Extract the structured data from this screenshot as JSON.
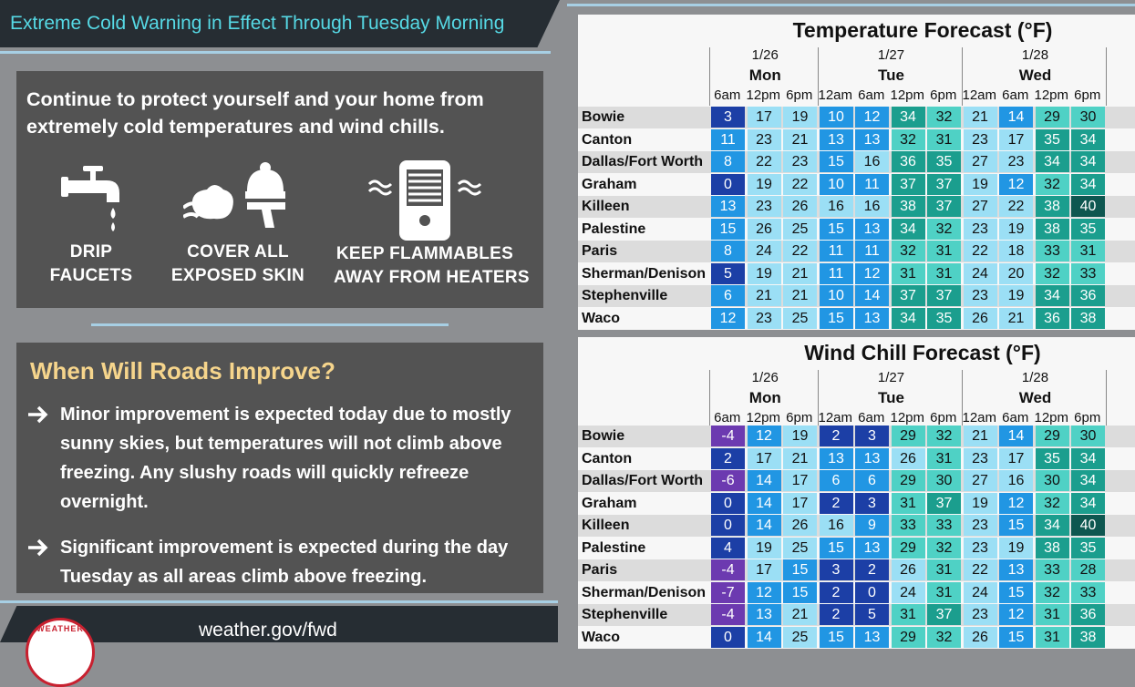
{
  "banner": {
    "title": "Extreme Cold Warning in Effect Through Tuesday Morning"
  },
  "tips": {
    "intro": "Continue to protect yourself and your home from extremely cold temperatures and wind chills.",
    "items": [
      {
        "icon": "faucet-icon",
        "line1": "DRIP",
        "line2": "FAUCETS"
      },
      {
        "icon": "cold-skin-icon",
        "line1": "COVER ALL",
        "line2": "EXPOSED SKIN"
      },
      {
        "icon": "space-heater-icon",
        "line1": "KEEP FLAMMABLES",
        "line2": "AWAY FROM HEATERS"
      }
    ]
  },
  "roads": {
    "title": "When Will Roads Improve?",
    "bullets": [
      "Minor improvement is expected today due to mostly sunny skies, but temperatures will not climb above freezing. Any slushy roads will quickly refreeze overnight.",
      "Significant improvement is expected during the day Tuesday as all areas climb above freezing."
    ]
  },
  "footer": {
    "url": "weather.gov/fwd",
    "logo_text": "WEATHER"
  },
  "forecasts": {
    "dates": [
      {
        "date": "1/26",
        "day": "Mon",
        "hours": [
          "6am",
          "12pm",
          "6pm"
        ]
      },
      {
        "date": "1/27",
        "day": "Tue",
        "hours": [
          "12am",
          "6am",
          "12pm",
          "6pm"
        ]
      },
      {
        "date": "1/28",
        "day": "Wed",
        "hours": [
          "12am",
          "6am",
          "12pm",
          "6pm"
        ]
      }
    ],
    "cities": [
      "Bowie",
      "Canton",
      "Dallas/Fort Worth",
      "Graham",
      "Killeen",
      "Palestine",
      "Paris",
      "Sherman/Denison",
      "Stephenville",
      "Waco"
    ],
    "temperature": {
      "title": "Temperature Forecast (°F)",
      "values": [
        [
          3,
          17,
          19,
          10,
          12,
          34,
          32,
          21,
          14,
          29,
          30
        ],
        [
          11,
          23,
          21,
          13,
          13,
          32,
          31,
          23,
          17,
          35,
          34
        ],
        [
          8,
          22,
          23,
          15,
          16,
          36,
          35,
          27,
          23,
          34,
          34
        ],
        [
          0,
          19,
          22,
          10,
          11,
          37,
          37,
          19,
          12,
          32,
          34
        ],
        [
          13,
          23,
          26,
          16,
          16,
          38,
          37,
          27,
          22,
          38,
          40
        ],
        [
          15,
          26,
          25,
          15,
          13,
          34,
          32,
          23,
          19,
          38,
          35
        ],
        [
          8,
          24,
          22,
          11,
          11,
          32,
          31,
          22,
          18,
          33,
          31
        ],
        [
          5,
          19,
          21,
          11,
          12,
          31,
          31,
          24,
          20,
          32,
          33
        ],
        [
          6,
          21,
          21,
          10,
          14,
          37,
          37,
          23,
          19,
          34,
          36
        ],
        [
          12,
          23,
          25,
          15,
          13,
          34,
          35,
          26,
          21,
          36,
          38
        ]
      ]
    },
    "wind_chill": {
      "title": "Wind Chill Forecast (°F)",
      "values": [
        [
          -4,
          12,
          19,
          2,
          3,
          29,
          32,
          21,
          14,
          29,
          30
        ],
        [
          2,
          17,
          21,
          13,
          13,
          26,
          31,
          23,
          17,
          35,
          34
        ],
        [
          -6,
          14,
          17,
          6,
          6,
          29,
          30,
          27,
          16,
          30,
          34
        ],
        [
          0,
          14,
          17,
          2,
          3,
          31,
          37,
          19,
          12,
          32,
          34
        ],
        [
          0,
          14,
          26,
          16,
          9,
          33,
          33,
          23,
          15,
          34,
          40
        ],
        [
          4,
          19,
          25,
          15,
          13,
          29,
          32,
          23,
          19,
          38,
          35
        ],
        [
          -4,
          17,
          15,
          3,
          2,
          26,
          31,
          22,
          13,
          33,
          28
        ],
        [
          -7,
          12,
          15,
          2,
          0,
          24,
          31,
          24,
          15,
          32,
          33
        ],
        [
          -4,
          13,
          21,
          2,
          5,
          31,
          37,
          23,
          12,
          31,
          36
        ],
        [
          0,
          14,
          25,
          15,
          13,
          29,
          32,
          26,
          15,
          31,
          38
        ]
      ]
    }
  }
}
